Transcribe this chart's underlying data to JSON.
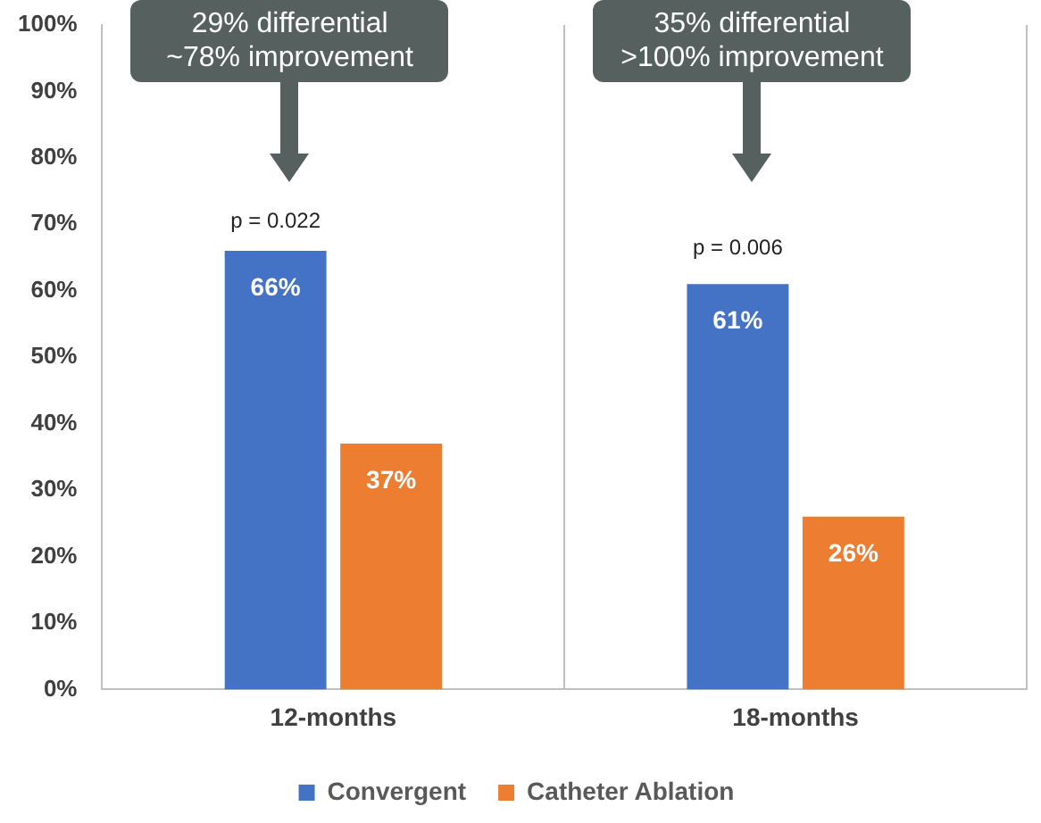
{
  "chart_data": {
    "type": "bar",
    "categories": [
      "12-months",
      "18-months"
    ],
    "series": [
      {
        "name": "Convergent",
        "color": "#4472c4",
        "values": [
          66,
          61
        ]
      },
      {
        "name": "Catheter Ablation",
        "color": "#ed7d31",
        "values": [
          37,
          26
        ]
      }
    ],
    "ylim": [
      0,
      100
    ],
    "yticks": [
      {
        "value": 0,
        "label": "0%"
      },
      {
        "value": 10,
        "label": "10%"
      },
      {
        "value": 20,
        "label": "20%"
      },
      {
        "value": 30,
        "label": "30%"
      },
      {
        "value": 40,
        "label": "40%"
      },
      {
        "value": 50,
        "label": "50%"
      },
      {
        "value": 60,
        "label": "60%"
      },
      {
        "value": 70,
        "label": "70%"
      },
      {
        "value": 80,
        "label": "80%"
      },
      {
        "value": 90,
        "label": "90%"
      },
      {
        "value": 100,
        "label": "100%"
      }
    ],
    "value_labels": [
      "66%",
      "61%",
      "37%",
      "26%"
    ],
    "annotations": [
      "29% differential\n~78% improvement",
      "35% differential\n>100% improvement",
      "p = 0.022",
      "p = 0.006"
    ],
    "grid": "x",
    "legend": "bottom"
  }
}
